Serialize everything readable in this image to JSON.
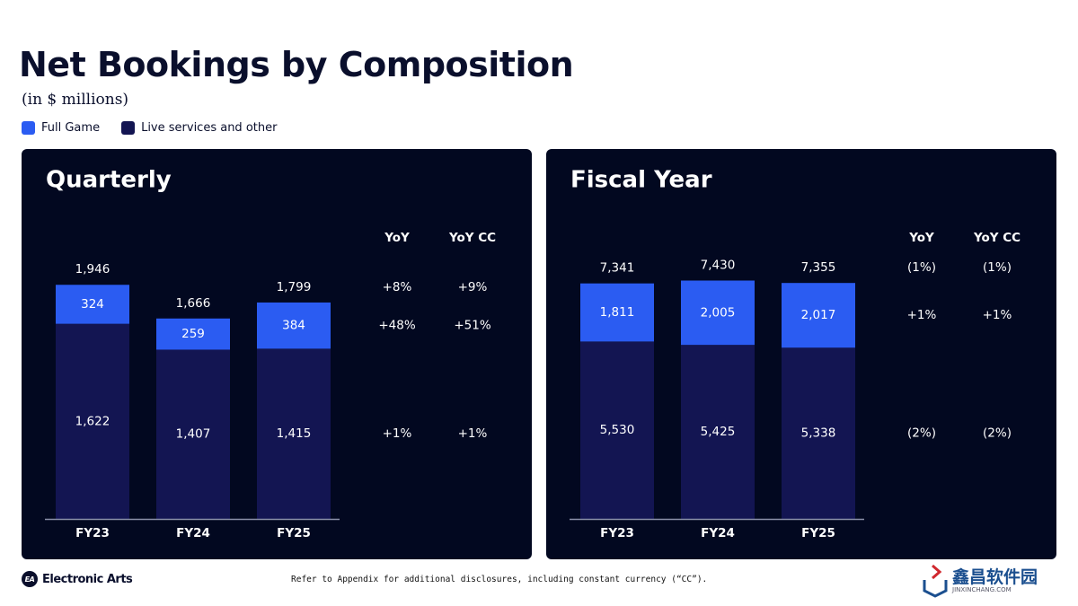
{
  "title": "Net Bookings by Composition",
  "subtitle": "(in $ millions)",
  "legend": [
    {
      "label": "Full Game",
      "color": "#2b5cf2"
    },
    {
      "label": "Live services and other",
      "color": "#131552"
    }
  ],
  "footer": {
    "brand": "Electronic Arts",
    "note": "Refer to Appendix for additional disclosures, including constant currency (“CC”).",
    "watermark": "鑫昌软件园",
    "watermark_sub": "JINXINCHANG.COM"
  },
  "chart_data": [
    {
      "type": "bar",
      "stacked": true,
      "title": "Quarterly",
      "categories": [
        "FY23",
        "FY24",
        "FY25"
      ],
      "series": [
        {
          "name": "Live services and other",
          "values": [
            1622,
            1407,
            1415
          ]
        },
        {
          "name": "Full Game",
          "values": [
            324,
            259,
            384
          ]
        }
      ],
      "value_labels": {
        "totals": [
          "1,946",
          "1,666",
          "1,799"
        ],
        "full_game": [
          "324",
          "259",
          "384"
        ],
        "live": [
          "1,622",
          "1,407",
          "1,415"
        ]
      },
      "ylim": [
        0,
        2000
      ],
      "yoy_headers": [
        "YoY",
        "YoY CC"
      ],
      "yoy": {
        "total": [
          "+8%",
          "+9%"
        ],
        "full_game": [
          "+48%",
          "+51%"
        ],
        "live": [
          "+1%",
          "+1%"
        ]
      }
    },
    {
      "type": "bar",
      "stacked": true,
      "title": "Fiscal Year",
      "categories": [
        "FY23",
        "FY24",
        "FY25"
      ],
      "series": [
        {
          "name": "Live services and other",
          "values": [
            5530,
            5425,
            5338
          ]
        },
        {
          "name": "Full Game",
          "values": [
            1811,
            2005,
            2017
          ]
        }
      ],
      "value_labels": {
        "totals": [
          "7,341",
          "7,430",
          "7,355"
        ],
        "full_game": [
          "1,811",
          "2,005",
          "2,017"
        ],
        "live": [
          "5,530",
          "5,425",
          "5,338"
        ]
      },
      "ylim": [
        0,
        7500
      ],
      "yoy_headers": [
        "YoY",
        "YoY CC"
      ],
      "yoy": {
        "total": [
          "(1%)",
          "(1%)"
        ],
        "full_game": [
          "+1%",
          "+1%"
        ],
        "live": [
          "(2%)",
          "(2%)"
        ]
      }
    }
  ]
}
